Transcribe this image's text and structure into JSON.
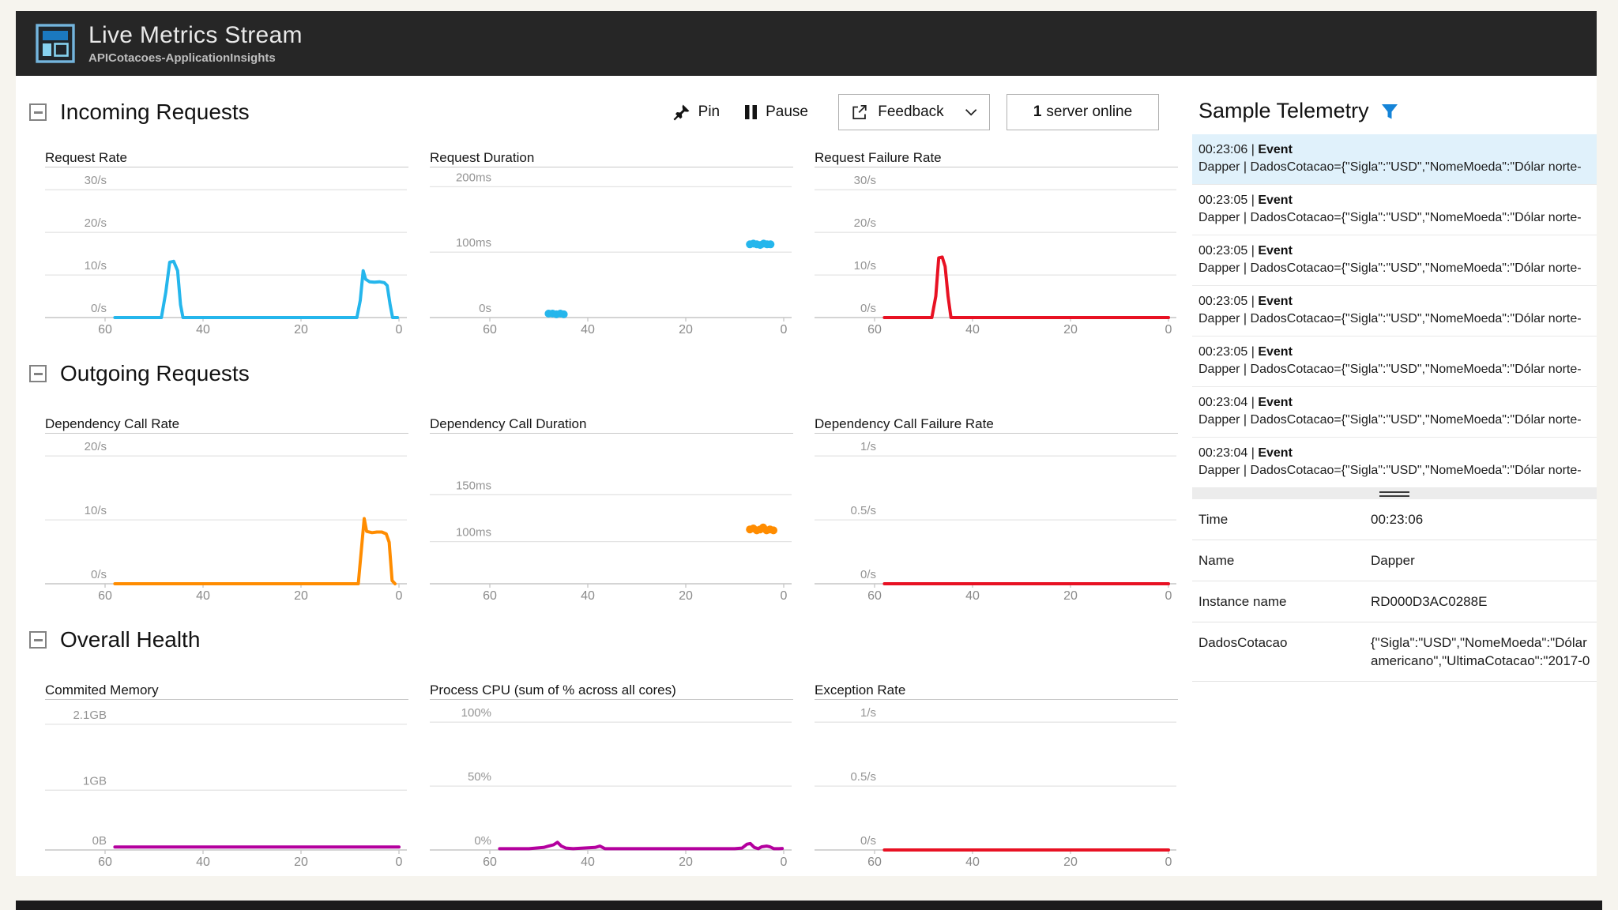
{
  "window": {
    "title": "Live Metrics Stream",
    "subtitle": "APICotacoes-ApplicationInsights"
  },
  "toolbar": {
    "pin": "Pin",
    "pause": "Pause",
    "feedback": "Feedback",
    "server_count": "1",
    "server_label": "server online"
  },
  "colors": {
    "cyan": "#25b6ec",
    "red": "#e81123",
    "orange": "#ff8c00",
    "purple": "#b4009e",
    "accent_blue": "#1584d8",
    "titlebar": "#262626",
    "selected_row": "#e0f1fb"
  },
  "sections": [
    {
      "title": "Incoming Requests",
      "charts": [
        {
          "title": "Request Rate",
          "type": "line",
          "color_key": "cyan",
          "x_ticks": [
            60,
            40,
            20,
            0
          ],
          "y_range": [
            0,
            33
          ],
          "gridlines": [
            {
              "value": 30,
              "label": "30/s"
            },
            {
              "value": 20,
              "label": "20/s"
            },
            {
              "value": 10,
              "label": "10/s"
            },
            {
              "value": 0,
              "label": "0/s"
            }
          ],
          "points": [
            [
              58,
              0
            ],
            [
              50,
              0
            ],
            [
              48.5,
              0
            ],
            [
              47.6,
              6
            ],
            [
              46.8,
              13
            ],
            [
              46,
              13.2
            ],
            [
              45.2,
              11
            ],
            [
              44.6,
              3
            ],
            [
              44.1,
              0
            ],
            [
              40,
              0
            ],
            [
              30,
              0
            ],
            [
              20,
              0
            ],
            [
              10,
              0
            ],
            [
              8.6,
              0
            ],
            [
              7.9,
              4
            ],
            [
              7.3,
              11
            ],
            [
              6.8,
              9
            ],
            [
              6,
              8.4
            ],
            [
              5,
              8.3
            ],
            [
              4,
              8.4
            ],
            [
              3,
              8.2
            ],
            [
              2.4,
              7.5
            ],
            [
              1.8,
              3
            ],
            [
              1.3,
              0
            ],
            [
              0.3,
              0
            ]
          ]
        },
        {
          "title": "Request Duration",
          "type": "scatter",
          "color_key": "cyan",
          "x_ticks": [
            60,
            40,
            20,
            0
          ],
          "y_range": [
            0,
            215
          ],
          "gridlines": [
            {
              "value": 200,
              "label": "200ms"
            },
            {
              "value": 100,
              "label": "100ms"
            },
            {
              "value": 0,
              "label": "0s"
            }
          ],
          "points": [
            [
              48,
              6
            ],
            [
              47.2,
              6
            ],
            [
              46.4,
              5
            ],
            [
              45.6,
              6
            ],
            [
              44.9,
              5
            ],
            [
              6.9,
              112
            ],
            [
              6.2,
              113
            ],
            [
              5.5,
              112
            ],
            [
              4.8,
              111
            ],
            [
              4.1,
              113
            ],
            [
              3.4,
              112
            ],
            [
              2.7,
              112
            ]
          ]
        },
        {
          "title": "Request Failure Rate",
          "type": "line",
          "color_key": "red",
          "x_ticks": [
            60,
            40,
            20,
            0
          ],
          "y_range": [
            0,
            33
          ],
          "gridlines": [
            {
              "value": 30,
              "label": "30/s"
            },
            {
              "value": 20,
              "label": "20/s"
            },
            {
              "value": 10,
              "label": "10/s"
            },
            {
              "value": 0,
              "label": "0/s"
            }
          ],
          "points": [
            [
              58,
              0
            ],
            [
              50,
              0
            ],
            [
              48.3,
              0
            ],
            [
              47.5,
              5
            ],
            [
              46.9,
              14
            ],
            [
              46.2,
              14.2
            ],
            [
              45.6,
              12
            ],
            [
              45,
              5
            ],
            [
              44.4,
              0
            ],
            [
              30,
              0
            ],
            [
              15,
              0
            ],
            [
              0,
              0
            ]
          ]
        }
      ]
    },
    {
      "title": "Outgoing Requests",
      "charts": [
        {
          "title": "Dependency Call Rate",
          "type": "line",
          "color_key": "orange",
          "x_ticks": [
            60,
            40,
            20,
            0
          ],
          "y_range": [
            0,
            22
          ],
          "gridlines": [
            {
              "value": 20,
              "label": "20/s"
            },
            {
              "value": 10,
              "label": "10/s"
            },
            {
              "value": 0,
              "label": "0/s"
            }
          ],
          "points": [
            [
              58,
              0
            ],
            [
              40,
              0
            ],
            [
              20,
              0
            ],
            [
              9,
              0
            ],
            [
              8.3,
              0
            ],
            [
              7.6,
              6
            ],
            [
              7.1,
              10.2
            ],
            [
              6.6,
              8.2
            ],
            [
              5.5,
              8
            ],
            [
              4.5,
              8.1
            ],
            [
              3.5,
              8.1
            ],
            [
              2.6,
              7.8
            ],
            [
              2,
              6.5
            ],
            [
              1.4,
              0.5
            ],
            [
              0.8,
              0
            ]
          ]
        },
        {
          "title": "Dependency Call Duration",
          "type": "scatter",
          "color_key": "orange",
          "x_ticks": [
            60,
            40,
            20,
            0
          ],
          "y_range": [
            55,
            205
          ],
          "gridlines": [
            {
              "value": 150,
              "label": "150ms"
            },
            {
              "value": 100,
              "label": "100ms"
            }
          ],
          "points": [
            [
              6.9,
              113
            ],
            [
              6.2,
              114
            ],
            [
              5.5,
              112
            ],
            [
              4.8,
              113
            ],
            [
              4.2,
              115
            ],
            [
              3.5,
              112
            ],
            [
              2.8,
              113
            ],
            [
              2.1,
              112
            ]
          ]
        },
        {
          "title": "Dependency Call Failure Rate",
          "type": "line",
          "color_key": "red",
          "x_ticks": [
            60,
            40,
            20,
            0
          ],
          "y_range": [
            0,
            1.1
          ],
          "gridlines": [
            {
              "value": 1,
              "label": "1/s"
            },
            {
              "value": 0.5,
              "label": "0.5/s"
            },
            {
              "value": 0,
              "label": "0/s"
            }
          ],
          "points": [
            [
              58,
              0
            ],
            [
              40,
              0
            ],
            [
              20,
              0
            ],
            [
              0,
              0
            ]
          ]
        }
      ]
    },
    {
      "title": "Overall Health",
      "charts": [
        {
          "title": "Commited Memory",
          "type": "line",
          "color_key": "purple",
          "x_ticks": [
            60,
            40,
            20,
            0
          ],
          "y_range": [
            0,
            2.35
          ],
          "gridlines": [
            {
              "value": 2.1,
              "label": "2.1GB"
            },
            {
              "value": 1,
              "label": "1GB"
            },
            {
              "value": 0,
              "label": "0B"
            }
          ],
          "points": [
            [
              58,
              0.05
            ],
            [
              40,
              0.05
            ],
            [
              20,
              0.05
            ],
            [
              0,
              0.05
            ]
          ]
        },
        {
          "title": "Process CPU (sum of % across all cores)",
          "type": "line",
          "color_key": "purple",
          "x_ticks": [
            60,
            40,
            20,
            0
          ],
          "y_range": [
            0,
            110
          ],
          "gridlines": [
            {
              "value": 100,
              "label": "100%"
            },
            {
              "value": 50,
              "label": "50%"
            },
            {
              "value": 0,
              "label": "0%"
            }
          ],
          "points": [
            [
              58,
              1
            ],
            [
              52,
              1
            ],
            [
              49,
              2
            ],
            [
              48,
              3
            ],
            [
              47,
              4
            ],
            [
              46.2,
              6
            ],
            [
              45.4,
              3
            ],
            [
              44.5,
              1.5
            ],
            [
              43,
              1
            ],
            [
              38.5,
              2
            ],
            [
              37.5,
              3
            ],
            [
              36.5,
              1
            ],
            [
              35,
              1
            ],
            [
              30,
              1
            ],
            [
              25,
              1
            ],
            [
              20,
              1
            ],
            [
              15,
              1
            ],
            [
              10,
              1
            ],
            [
              8.5,
              1.5
            ],
            [
              7.5,
              4.5
            ],
            [
              6.8,
              5
            ],
            [
              6,
              2
            ],
            [
              5.2,
              1
            ],
            [
              4.5,
              2.5
            ],
            [
              3.5,
              3
            ],
            [
              2.8,
              2.5
            ],
            [
              2,
              1
            ],
            [
              1,
              1
            ],
            [
              0.3,
              1.2
            ]
          ]
        },
        {
          "title": "Exception Rate",
          "type": "line",
          "color_key": "red",
          "x_ticks": [
            60,
            40,
            20,
            0
          ],
          "y_range": [
            0,
            1.1
          ],
          "gridlines": [
            {
              "value": 1,
              "label": "1/s"
            },
            {
              "value": 0.5,
              "label": "0.5/s"
            },
            {
              "value": 0,
              "label": "0/s"
            }
          ],
          "points": [
            [
              58,
              0
            ],
            [
              40,
              0
            ],
            [
              20,
              0
            ],
            [
              0,
              0
            ]
          ]
        }
      ]
    }
  ],
  "telemetry": {
    "title": "Sample Telemetry",
    "events": [
      {
        "time": "00:23:06",
        "type": "Event",
        "separator": "|",
        "detail": "Dapper | DadosCotacao={\"Sigla\":\"USD\",\"NomeMoeda\":\"Dólar norte-",
        "selected": true
      },
      {
        "time": "00:23:05",
        "type": "Event",
        "separator": "|",
        "detail": "Dapper | DadosCotacao={\"Sigla\":\"USD\",\"NomeMoeda\":\"Dólar norte-",
        "selected": false
      },
      {
        "time": "00:23:05",
        "type": "Event",
        "separator": "|",
        "detail": "Dapper | DadosCotacao={\"Sigla\":\"USD\",\"NomeMoeda\":\"Dólar norte-",
        "selected": false
      },
      {
        "time": "00:23:05",
        "type": "Event",
        "separator": "|",
        "detail": "Dapper | DadosCotacao={\"Sigla\":\"USD\",\"NomeMoeda\":\"Dólar norte-",
        "selected": false
      },
      {
        "time": "00:23:05",
        "type": "Event",
        "separator": "|",
        "detail": "Dapper | DadosCotacao={\"Sigla\":\"USD\",\"NomeMoeda\":\"Dólar norte-",
        "selected": false
      },
      {
        "time": "00:23:04",
        "type": "Event",
        "separator": "|",
        "detail": "Dapper | DadosCotacao={\"Sigla\":\"USD\",\"NomeMoeda\":\"Dólar norte-",
        "selected": false
      },
      {
        "time": "00:23:04",
        "type": "Event",
        "separator": "|",
        "detail": "Dapper | DadosCotacao={\"Sigla\":\"USD\",\"NomeMoeda\":\"Dólar norte-",
        "selected": false
      }
    ],
    "details": [
      {
        "label": "Time",
        "value": "00:23:06"
      },
      {
        "label": "Name",
        "value": "Dapper"
      },
      {
        "label": "Instance name",
        "value": "RD000D3AC0288E"
      },
      {
        "label": "DadosCotacao",
        "value": "{\"Sigla\":\"USD\",\"NomeMoeda\":\"Dólar americano\",\"UltimaCotacao\":\"2017-0"
      }
    ]
  }
}
